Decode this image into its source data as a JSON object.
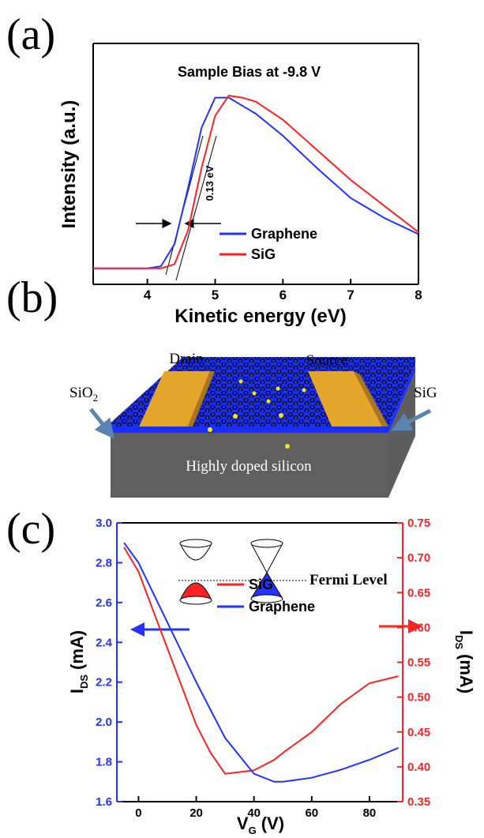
{
  "panel_labels": [
    "(a)",
    "(b)",
    "(c)"
  ],
  "diagram": {
    "drain": "Drain",
    "source": "Source",
    "oxide": [
      "SiO",
      "2"
    ],
    "film": "SiG",
    "substrate": "Highly doped silicon"
  },
  "chart_data": [
    {
      "type": "line",
      "annotation": "Sample Bias at -9.8  V",
      "shift_label": "0.13 eV",
      "x_label": "Kinetic energy (eV)",
      "y_label": "Intensity (a.u.)",
      "xlim": [
        3.2,
        8
      ],
      "xticks": [
        4,
        5,
        6,
        7,
        8
      ],
      "ylim": [
        0,
        1.2
      ],
      "x": [
        3.2,
        4,
        4.2,
        4.4,
        4.6,
        4.8,
        5,
        5.2,
        5.4,
        5.6,
        6,
        6.5,
        7,
        7.5,
        8
      ],
      "series": [
        {
          "name": "Graphene",
          "color": "#2233ff",
          "values": [
            0.08,
            0.08,
            0.09,
            0.2,
            0.48,
            0.78,
            0.93,
            0.93,
            0.89,
            0.85,
            0.74,
            0.58,
            0.43,
            0.33,
            0.25
          ]
        },
        {
          "name": "SiG",
          "color": "#ff2222",
          "values": [
            0.08,
            0.08,
            0.08,
            0.1,
            0.27,
            0.58,
            0.84,
            0.94,
            0.93,
            0.91,
            0.82,
            0.67,
            0.52,
            0.39,
            0.26
          ]
        }
      ]
    },
    {
      "type": "line",
      "annotation": "Fermi Level",
      "x_label": [
        "V",
        "G",
        "(V)"
      ],
      "y_label": [
        "I",
        "DS",
        "(mA)"
      ],
      "y2_label": [
        "I",
        "DS",
        "(mA)"
      ],
      "xlim": [
        -7.5,
        91.5
      ],
      "xticks": [
        0,
        20,
        40,
        60,
        80
      ],
      "ylim": [
        1.6,
        3.0
      ],
      "yticks": [
        1.6,
        1.8,
        {
          "value": 2,
          "label": "2.0"
        },
        2.2,
        2.4,
        2.6,
        2.8,
        {
          "value": 3,
          "label": "3.0"
        }
      ],
      "y2lim": [
        0.35,
        0.75
      ],
      "y2ticks": [
        0.35,
        {
          "value": 0.4,
          "label": "0.40"
        },
        0.45,
        {
          "value": 0.5,
          "label": "0.50"
        },
        0.55,
        {
          "value": 0.6,
          "label": "0.60"
        },
        0.65,
        {
          "value": 0.7,
          "label": "0.70"
        },
        0.75
      ],
      "x": [
        -5,
        0,
        10,
        20,
        25,
        30,
        40,
        47,
        50,
        60,
        70,
        80,
        90
      ],
      "series": [
        {
          "name": "SiG",
          "color": "#ff2222",
          "axis": "y2",
          "values": [
            0.715,
            0.68,
            0.57,
            0.46,
            0.42,
            0.39,
            0.395,
            0.41,
            0.42,
            0.45,
            0.49,
            0.52,
            0.53
          ]
        },
        {
          "name": "Graphene",
          "color": "#2233ff",
          "values": [
            2.9,
            2.8,
            2.5,
            2.2,
            2.06,
            1.92,
            1.74,
            1.7,
            1.7,
            1.72,
            1.76,
            1.81,
            1.87
          ]
        }
      ]
    }
  ]
}
